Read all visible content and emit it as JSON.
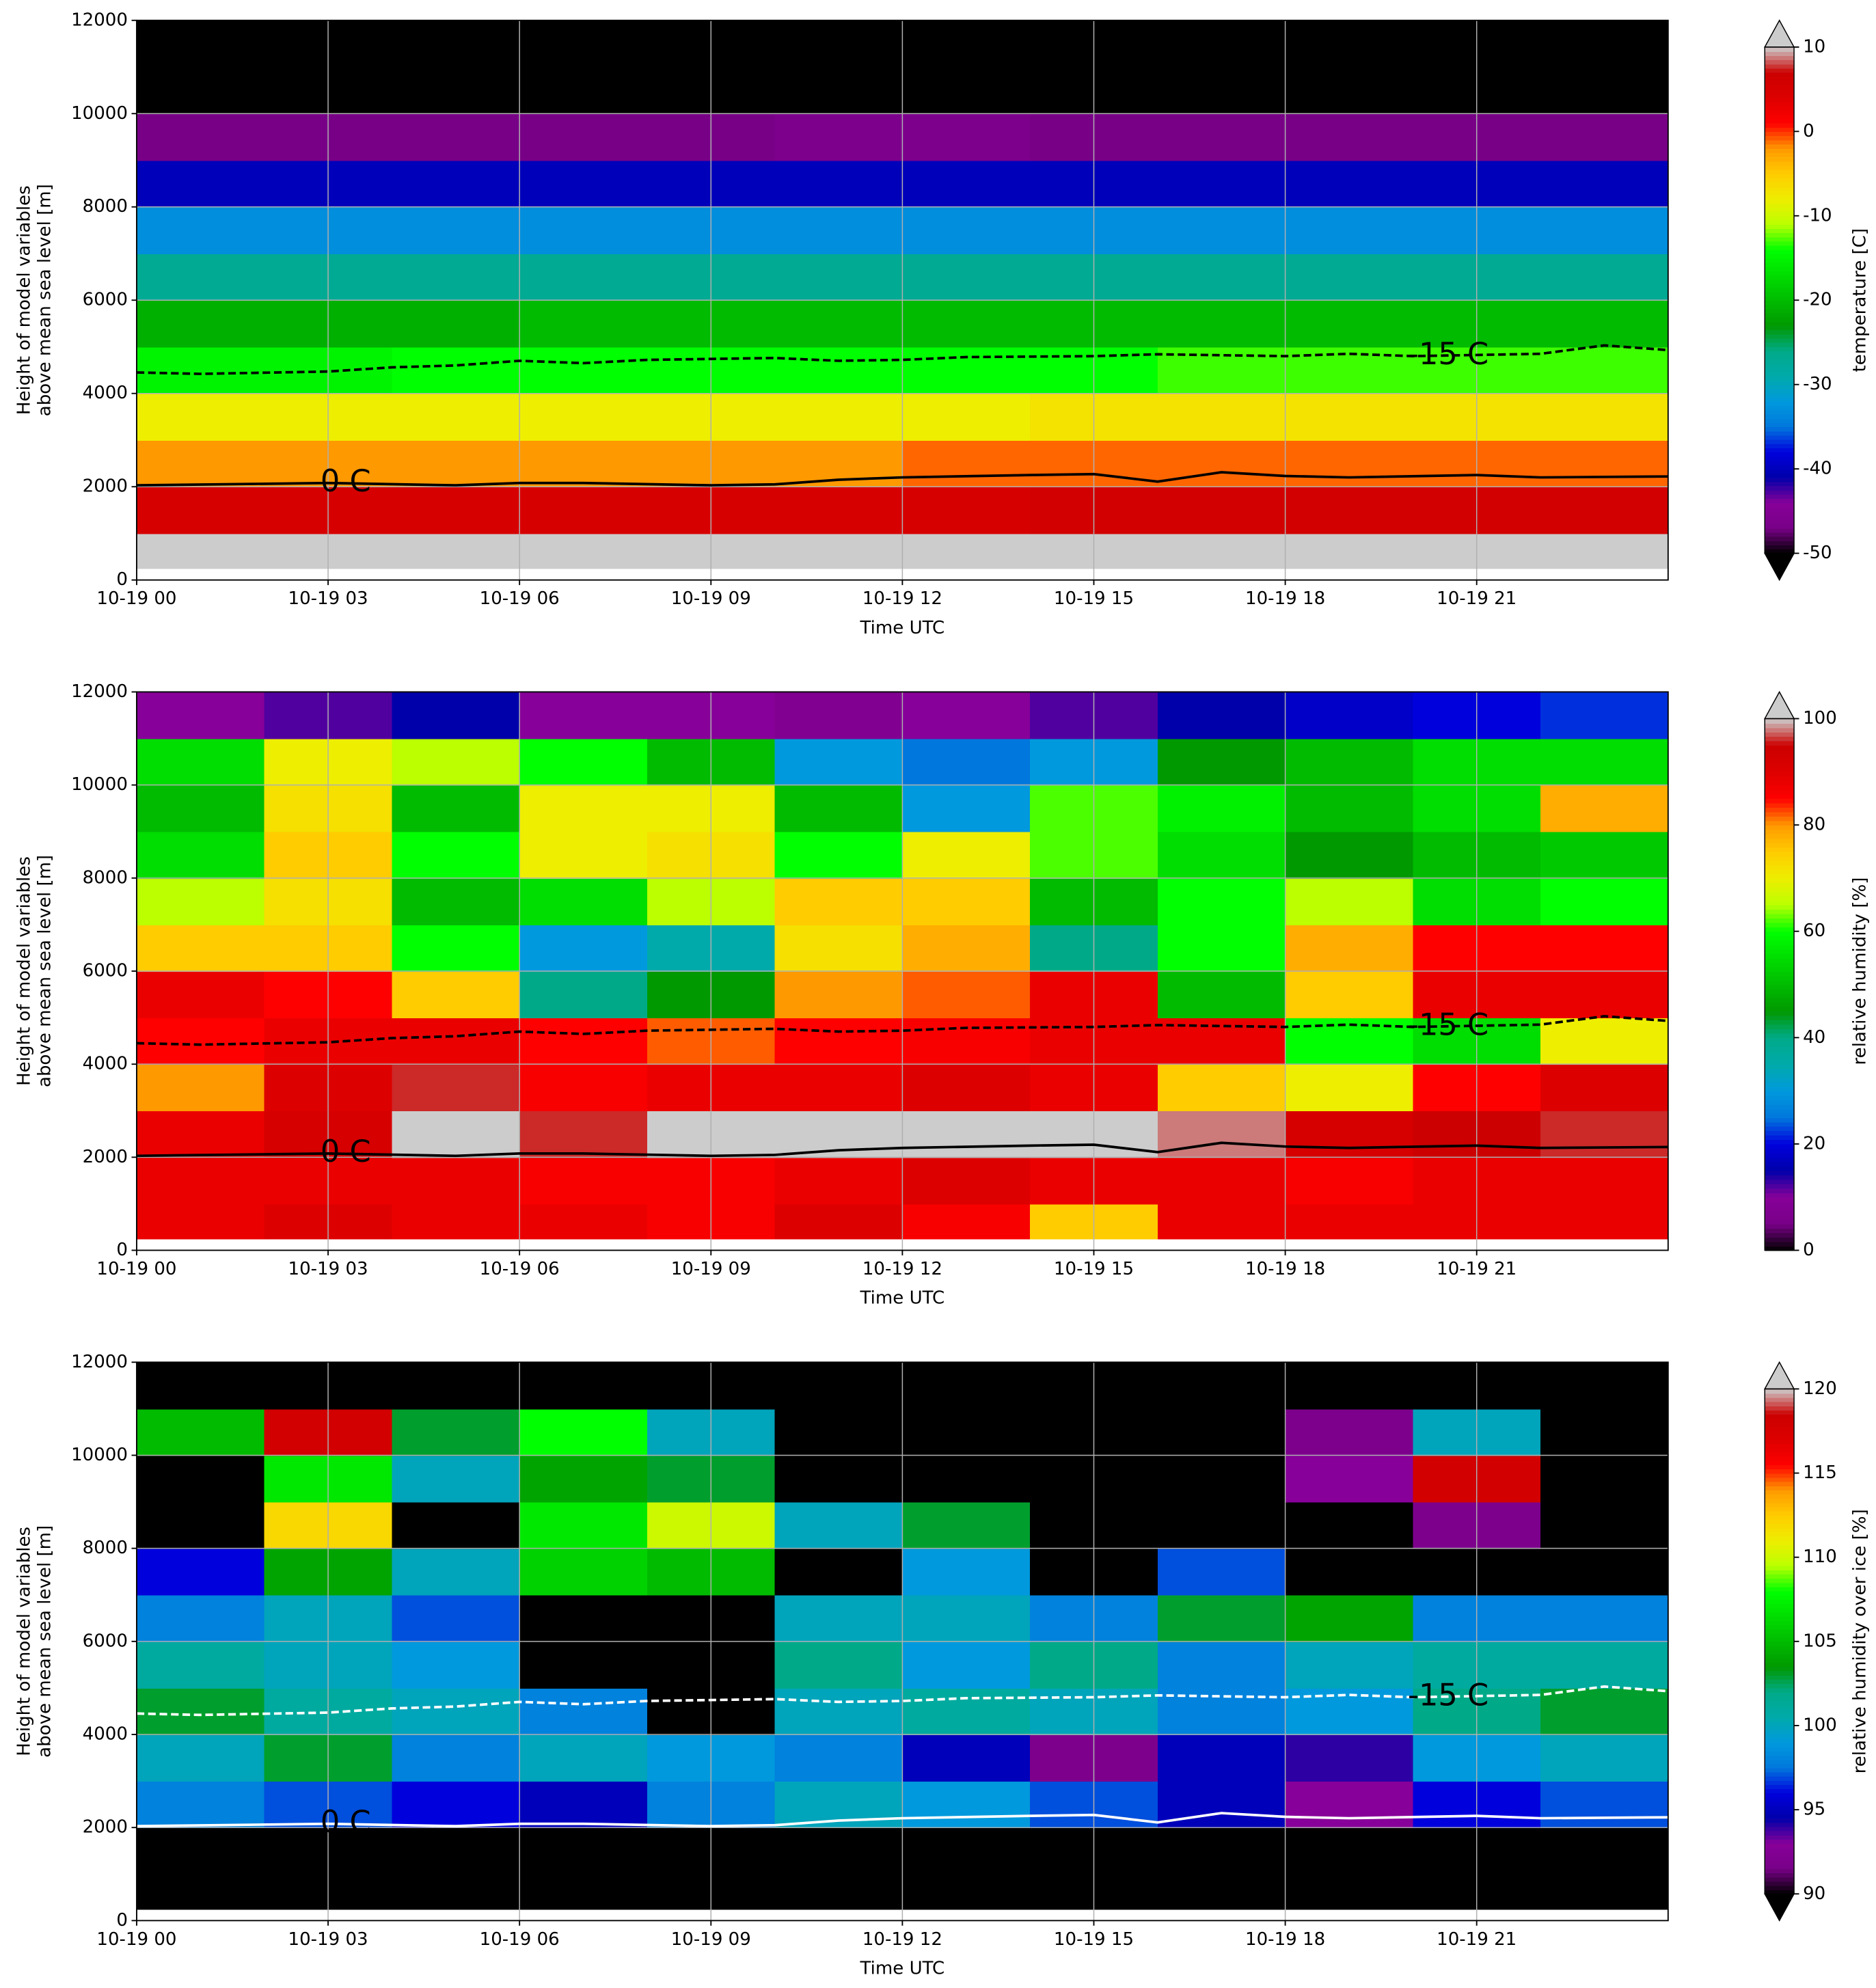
{
  "chart_data": [
    {
      "type": "heatmap",
      "xlabel": "Time UTC",
      "ylabel": [
        "Height of model variables",
        "above mean sea level [m]"
      ],
      "clabel": "temperature [C]",
      "extend": "both",
      "grid": true,
      "contour_color": "#000000",
      "xlim": [
        0,
        24
      ],
      "ylim": [
        0,
        12000
      ],
      "xticks": [
        {
          "value": 0,
          "label": "10-19 00"
        },
        {
          "value": 3,
          "label": "10-19 03"
        },
        {
          "value": 6,
          "label": "10-19 06"
        },
        {
          "value": 9,
          "label": "10-19 09"
        },
        {
          "value": 12,
          "label": "10-19 12"
        },
        {
          "value": 15,
          "label": "10-19 15"
        },
        {
          "value": 18,
          "label": "10-19 18"
        },
        {
          "value": 21,
          "label": "10-19 21"
        }
      ],
      "yticks": [
        0,
        2000,
        4000,
        6000,
        8000,
        10000,
        12000
      ],
      "clim": [
        -50,
        10
      ],
      "cticks": [
        -50,
        -40,
        -30,
        -20,
        -10,
        0,
        10
      ],
      "colormap": [
        "#000000",
        "#780087",
        "#870099",
        "#0000aa",
        "#0000dd",
        "#0077dd",
        "#0099dd",
        "#00aaaa",
        "#00aa88",
        "#009900",
        "#00bb00",
        "#00dd00",
        "#00ff00",
        "#bbff00",
        "#eeee00",
        "#ffcc00",
        "#ff9900",
        "#ff0000",
        "#dd0000",
        "#cc0000",
        "#cccccc"
      ],
      "under_color": "#000000",
      "over_color": "#cccccc",
      "x_edges": [
        0,
        2,
        4,
        6,
        8,
        10,
        12,
        14,
        16,
        18,
        20,
        22,
        24
      ],
      "y_edges": [
        250,
        1000,
        2000,
        3000,
        4000,
        5000,
        6000,
        7000,
        8000,
        9000,
        10000,
        11000,
        12000
      ],
      "values": [
        [
          11,
          11,
          11,
          11,
          11,
          11,
          11,
          11,
          11,
          11,
          11,
          11
        ],
        [
          5,
          5,
          5,
          5,
          5,
          5,
          5,
          6,
          6,
          6,
          6,
          6
        ],
        [
          -2,
          -2,
          -2,
          -2,
          -2,
          -2,
          -1,
          -1,
          -1,
          -1,
          -1,
          -1
        ],
        [
          -8,
          -8,
          -8,
          -8,
          -8,
          -8,
          -8,
          -7,
          -7,
          -7,
          -7,
          -7
        ],
        [
          -15,
          -15,
          -14,
          -14,
          -14,
          -14,
          -14,
          -14,
          -13,
          -13,
          -13,
          -13
        ],
        [
          -21,
          -21,
          -21,
          -20,
          -20,
          -20,
          -20,
          -20,
          -20,
          -20,
          -20,
          -20
        ],
        [
          -27,
          -27,
          -27,
          -27,
          -27,
          -27,
          -27,
          -27,
          -27,
          -27,
          -27,
          -27
        ],
        [
          -33,
          -33,
          -33,
          -33,
          -33,
          -33,
          -33,
          -33,
          -33,
          -33,
          -33,
          -33
        ],
        [
          -40,
          -40,
          -40,
          -40,
          -40,
          -40,
          -40,
          -40,
          -40,
          -40,
          -40,
          -40
        ],
        [
          -47,
          -47,
          -47,
          -47,
          -47,
          -46,
          -46,
          -47,
          -47,
          -47,
          -47,
          -47
        ],
        [
          -55,
          -55,
          -55,
          -55,
          -55,
          -55,
          -55,
          -55,
          -55,
          -55,
          -55,
          -55
        ],
        [
          -57,
          -57,
          -57,
          -57,
          -57,
          -57,
          -57,
          -57,
          -57,
          -57,
          -57,
          -57
        ]
      ],
      "contours": [
        {
          "name": "0 C",
          "style": "solid",
          "x": [
            0,
            3,
            5,
            6,
            7,
            9,
            10,
            11,
            12,
            14,
            15,
            16,
            17,
            18,
            19,
            21,
            22,
            24
          ],
          "values": [
            2030,
            2080,
            2030,
            2080,
            2080,
            2030,
            2050,
            2150,
            2200,
            2250,
            2270,
            2110,
            2310,
            2230,
            2200,
            2250,
            2200,
            2220
          ]
        },
        {
          "name": "-15 C",
          "style": "dashed",
          "x": [
            0,
            1,
            3,
            4,
            5,
            6,
            7,
            8,
            10,
            11,
            12,
            13,
            15,
            16,
            18,
            19,
            20,
            22,
            23,
            24
          ],
          "values": [
            4450,
            4420,
            4470,
            4560,
            4600,
            4700,
            4650,
            4720,
            4760,
            4700,
            4720,
            4780,
            4800,
            4840,
            4800,
            4850,
            4800,
            4850,
            5030,
            4930
          ]
        }
      ]
    },
    {
      "type": "heatmap",
      "xlabel": "Time UTC",
      "ylabel": [
        "Height of model variables",
        "above mean sea level [m]"
      ],
      "clabel": "relative humidity [%]",
      "extend": "max",
      "grid": true,
      "contour_color": "#000000",
      "xlim": [
        0,
        24
      ],
      "ylim": [
        0,
        12000
      ],
      "xticks": [
        {
          "value": 0,
          "label": "10-19 00"
        },
        {
          "value": 3,
          "label": "10-19 03"
        },
        {
          "value": 6,
          "label": "10-19 06"
        },
        {
          "value": 9,
          "label": "10-19 09"
        },
        {
          "value": 12,
          "label": "10-19 12"
        },
        {
          "value": 15,
          "label": "10-19 15"
        },
        {
          "value": 18,
          "label": "10-19 18"
        },
        {
          "value": 21,
          "label": "10-19 21"
        }
      ],
      "yticks": [
        0,
        2000,
        4000,
        6000,
        8000,
        10000,
        12000
      ],
      "clim": [
        0,
        100
      ],
      "cticks": [
        0,
        20,
        40,
        60,
        80,
        100
      ],
      "colormap": [
        "#000000",
        "#780087",
        "#870099",
        "#0000aa",
        "#0000dd",
        "#0077dd",
        "#0099dd",
        "#00aaaa",
        "#00aa88",
        "#009900",
        "#00bb00",
        "#00dd00",
        "#00ff00",
        "#bbff00",
        "#eeee00",
        "#ffcc00",
        "#ff9900",
        "#ff0000",
        "#dd0000",
        "#cc0000",
        "#cccccc"
      ],
      "under_color": "#000000",
      "over_color": "#cccccc",
      "x_edges": [
        0,
        2,
        4,
        6,
        8,
        10,
        12,
        14,
        16,
        18,
        20,
        22,
        24
      ],
      "y_edges": [
        250,
        1000,
        2000,
        3000,
        4000,
        5000,
        6000,
        7000,
        8000,
        9000,
        10000,
        11000,
        12000
      ],
      "values": [
        [
          88,
          90,
          88,
          88,
          86,
          90,
          86,
          75,
          88,
          88,
          88,
          88
        ],
        [
          88,
          88,
          88,
          86,
          86,
          88,
          90,
          88,
          88,
          86,
          88,
          88
        ],
        [
          88,
          92,
          100,
          96,
          100,
          100,
          100,
          100,
          98,
          92,
          95,
          96
        ],
        [
          80,
          90,
          96,
          86,
          88,
          88,
          90,
          88,
          75,
          70,
          85,
          90
        ],
        [
          85,
          88,
          88,
          85,
          82,
          85,
          86,
          88,
          88,
          60,
          55,
          70
        ],
        [
          88,
          85,
          75,
          40,
          45,
          80,
          82,
          88,
          50,
          75,
          88,
          88
        ],
        [
          75,
          75,
          60,
          30,
          35,
          72,
          78,
          40,
          60,
          78,
          85,
          85
        ],
        [
          65,
          72,
          50,
          55,
          65,
          75,
          75,
          50,
          60,
          65,
          55,
          60
        ],
        [
          55,
          75,
          60,
          70,
          72,
          60,
          70,
          62,
          55,
          45,
          50,
          52
        ],
        [
          50,
          72,
          50,
          70,
          70,
          50,
          30,
          62,
          58,
          50,
          55,
          78
        ],
        [
          55,
          70,
          65,
          60,
          50,
          30,
          25,
          30,
          45,
          50,
          55,
          55
        ],
        [
          10,
          12,
          15,
          10,
          10,
          8,
          10,
          12,
          15,
          18,
          20,
          22
        ]
      ]
    },
    {
      "type": "heatmap",
      "xlabel": "Time UTC",
      "ylabel": [
        "Height of model variables",
        "above mean sea level [m]"
      ],
      "clabel": "relative humidity over ice [%]",
      "extend": "both",
      "grid": true,
      "contour_color": "#ffffff",
      "xlim": [
        0,
        24
      ],
      "ylim": [
        0,
        12000
      ],
      "xticks": [
        {
          "value": 0,
          "label": "10-19 00"
        },
        {
          "value": 3,
          "label": "10-19 03"
        },
        {
          "value": 6,
          "label": "10-19 06"
        },
        {
          "value": 9,
          "label": "10-19 09"
        },
        {
          "value": 12,
          "label": "10-19 12"
        },
        {
          "value": 15,
          "label": "10-19 15"
        },
        {
          "value": 18,
          "label": "10-19 18"
        },
        {
          "value": 21,
          "label": "10-19 21"
        }
      ],
      "yticks": [
        0,
        2000,
        4000,
        6000,
        8000,
        10000,
        12000
      ],
      "clim": [
        90,
        120
      ],
      "cticks": [
        90,
        95,
        100,
        105,
        110,
        115,
        120
      ],
      "colormap": [
        "#000000",
        "#780087",
        "#870099",
        "#0000aa",
        "#0000dd",
        "#0077dd",
        "#0099dd",
        "#00aaaa",
        "#00aa88",
        "#009900",
        "#00bb00",
        "#00dd00",
        "#00ff00",
        "#bbff00",
        "#eeee00",
        "#ffcc00",
        "#ff9900",
        "#ff0000",
        "#dd0000",
        "#cc0000",
        "#cccccc"
      ],
      "under_color": "#000000",
      "over_color": "#cccccc",
      "x_edges": [
        0,
        2,
        4,
        6,
        8,
        10,
        12,
        14,
        16,
        18,
        20,
        22,
        24
      ],
      "y_edges": [
        250,
        1000,
        2000,
        3000,
        4000,
        5000,
        6000,
        7000,
        8000,
        9000,
        10000,
        11000,
        12000
      ],
      "values": [
        [
          80,
          80,
          80,
          80,
          80,
          80,
          80,
          80,
          80,
          80,
          80,
          80
        ],
        [
          80,
          80,
          80,
          80,
          80,
          80,
          80,
          80,
          80,
          80,
          80,
          80
        ],
        [
          98,
          97,
          96,
          95,
          98,
          100,
          99,
          97,
          95,
          93,
          96,
          97
        ],
        [
          100,
          103,
          98,
          100,
          99,
          98,
          95,
          92,
          95,
          94,
          99,
          100
        ],
        [
          103,
          101,
          100,
          98,
          90,
          100,
          101,
          100,
          98,
          99,
          102,
          103
        ],
        [
          101,
          100,
          99,
          85,
          85,
          102,
          99,
          102,
          98,
          100,
          101,
          101
        ],
        [
          98,
          100,
          97,
          85,
          85,
          100,
          100,
          98,
          103,
          104,
          98,
          98
        ],
        [
          96,
          104,
          100,
          106,
          105,
          85,
          99,
          85,
          97,
          85,
          85,
          85
        ],
        [
          85,
          112,
          85,
          107,
          110,
          100,
          103,
          85,
          85,
          85,
          92,
          85
        ],
        [
          85,
          107,
          100,
          104,
          103,
          85,
          85,
          85,
          85,
          93,
          118,
          85
        ],
        [
          105,
          118,
          103,
          108,
          100,
          85,
          85,
          85,
          85,
          92,
          100,
          85
        ],
        [
          85,
          85,
          85,
          85,
          85,
          85,
          85,
          85,
          85,
          85,
          85,
          85
        ]
      ]
    }
  ]
}
